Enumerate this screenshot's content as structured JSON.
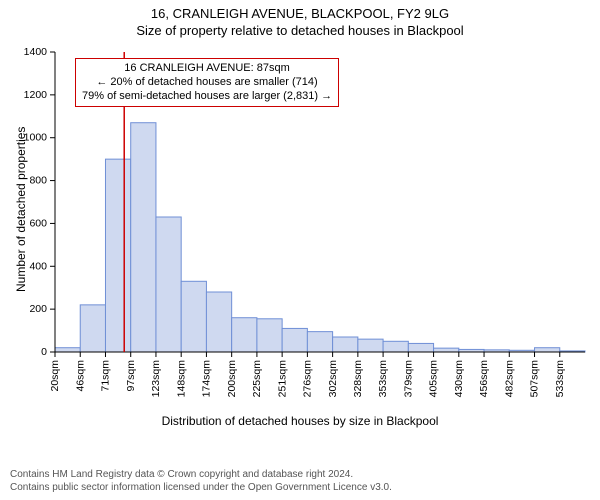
{
  "title": "16, CRANLEIGH AVENUE, BLACKPOOL, FY2 9LG",
  "subtitle": "Size of property relative to detached houses in Blackpool",
  "ylabel": "Number of detached properties",
  "xlabel": "Distribution of detached houses by size in Blackpool",
  "chart": {
    "type": "histogram",
    "bar_fill": "#cfd9f0",
    "bar_stroke": "#6f8fd6",
    "bar_width_ratio": 1.0,
    "background_color": "#ffffff",
    "axis_color": "#000000",
    "marker_color": "#cc0000",
    "marker_x_value": 87,
    "ylim": [
      0,
      1400
    ],
    "ytick_step": 200,
    "xlim": [
      20,
      533
    ],
    "categories": [
      "20sqm",
      "46sqm",
      "71sqm",
      "97sqm",
      "123sqm",
      "148sqm",
      "174sqm",
      "200sqm",
      "225sqm",
      "251sqm",
      "276sqm",
      "302sqm",
      "328sqm",
      "353sqm",
      "379sqm",
      "405sqm",
      "430sqm",
      "456sqm",
      "482sqm",
      "507sqm",
      "533sqm"
    ],
    "values": [
      20,
      220,
      900,
      1070,
      630,
      330,
      280,
      160,
      155,
      110,
      95,
      70,
      60,
      50,
      40,
      18,
      12,
      10,
      8,
      20,
      5
    ],
    "label_fontsize": 12,
    "tick_fontsize": 10.5
  },
  "annotation": {
    "border_color": "#cc0000",
    "lines": [
      "16 CRANLEIGH AVENUE: 87sqm",
      "← 20% of detached houses are smaller (714)",
      "79% of semi-detached houses are larger (2,831) →"
    ]
  },
  "footer": {
    "line1": "Contains HM Land Registry data © Crown copyright and database right 2024.",
    "line2": "Contains public sector information licensed under the Open Government Licence v3.0."
  }
}
